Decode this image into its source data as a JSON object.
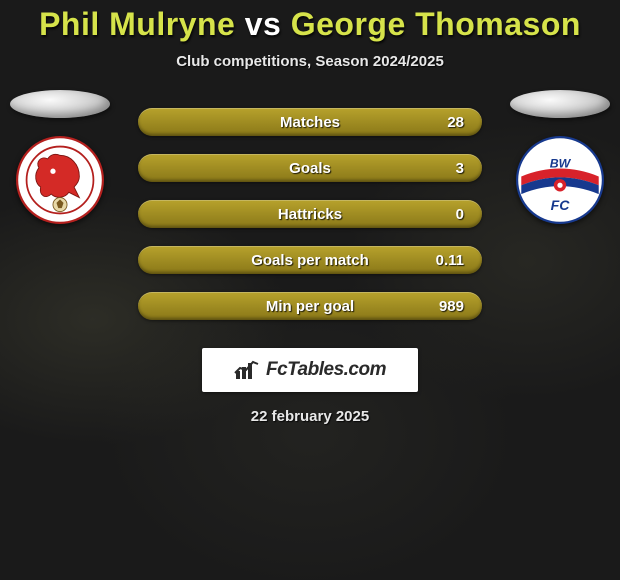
{
  "title": {
    "player1": "Phil Mulryne",
    "vs": " vs ",
    "player2": "George Thomason",
    "color1": "#d6e34a",
    "color_vs": "#ffffff",
    "color2": "#d6e34a"
  },
  "subtitle": "Club competitions, Season 2024/2025",
  "stats": [
    {
      "label": "Matches",
      "value": "28",
      "left_fill_pct": 0
    },
    {
      "label": "Goals",
      "value": "3",
      "left_fill_pct": 0
    },
    {
      "label": "Hattricks",
      "value": "0",
      "left_fill_pct": 0
    },
    {
      "label": "Goals per match",
      "value": "0.11",
      "left_fill_pct": 0
    },
    {
      "label": "Min per goal",
      "value": "989",
      "left_fill_pct": 0
    }
  ],
  "bar_color": "#a89425",
  "crest_left": {
    "name": "leyton-orient-crest",
    "bg": "#ffffff",
    "ring": "#b4201e",
    "accent": "#d42a26"
  },
  "crest_right": {
    "name": "bolton-wanderers-crest",
    "bg": "#ffffff",
    "stripes": [
      "#17398e",
      "#d8222a"
    ]
  },
  "brand": "FcTables.com",
  "date": "22 february 2025"
}
